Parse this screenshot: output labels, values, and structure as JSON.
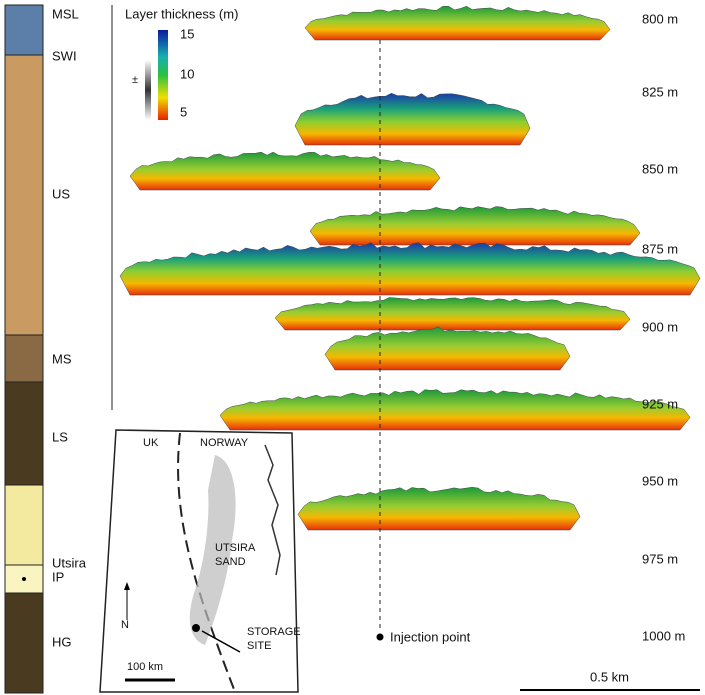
{
  "column": {
    "labels": [
      "MSL",
      "SWI",
      "US",
      "MS",
      "LS",
      "Utsira",
      "IP",
      "HG"
    ]
  },
  "legend": {
    "title": "Layer thickness (m)",
    "symbol": "±",
    "ticks": [
      15,
      10,
      5
    ]
  },
  "depths": [
    "800 m",
    "825 m",
    "850 m",
    "875 m",
    "900 m",
    "925 m",
    "950 m",
    "975 m",
    "1000 m"
  ],
  "map": {
    "labels": [
      "UK",
      "NORWAY",
      "UTSIRA",
      "SAND",
      "N",
      "STORAGE",
      "SITE",
      "100 km"
    ]
  },
  "injection_label": "Injection point",
  "scale_label": "0.5 km"
}
